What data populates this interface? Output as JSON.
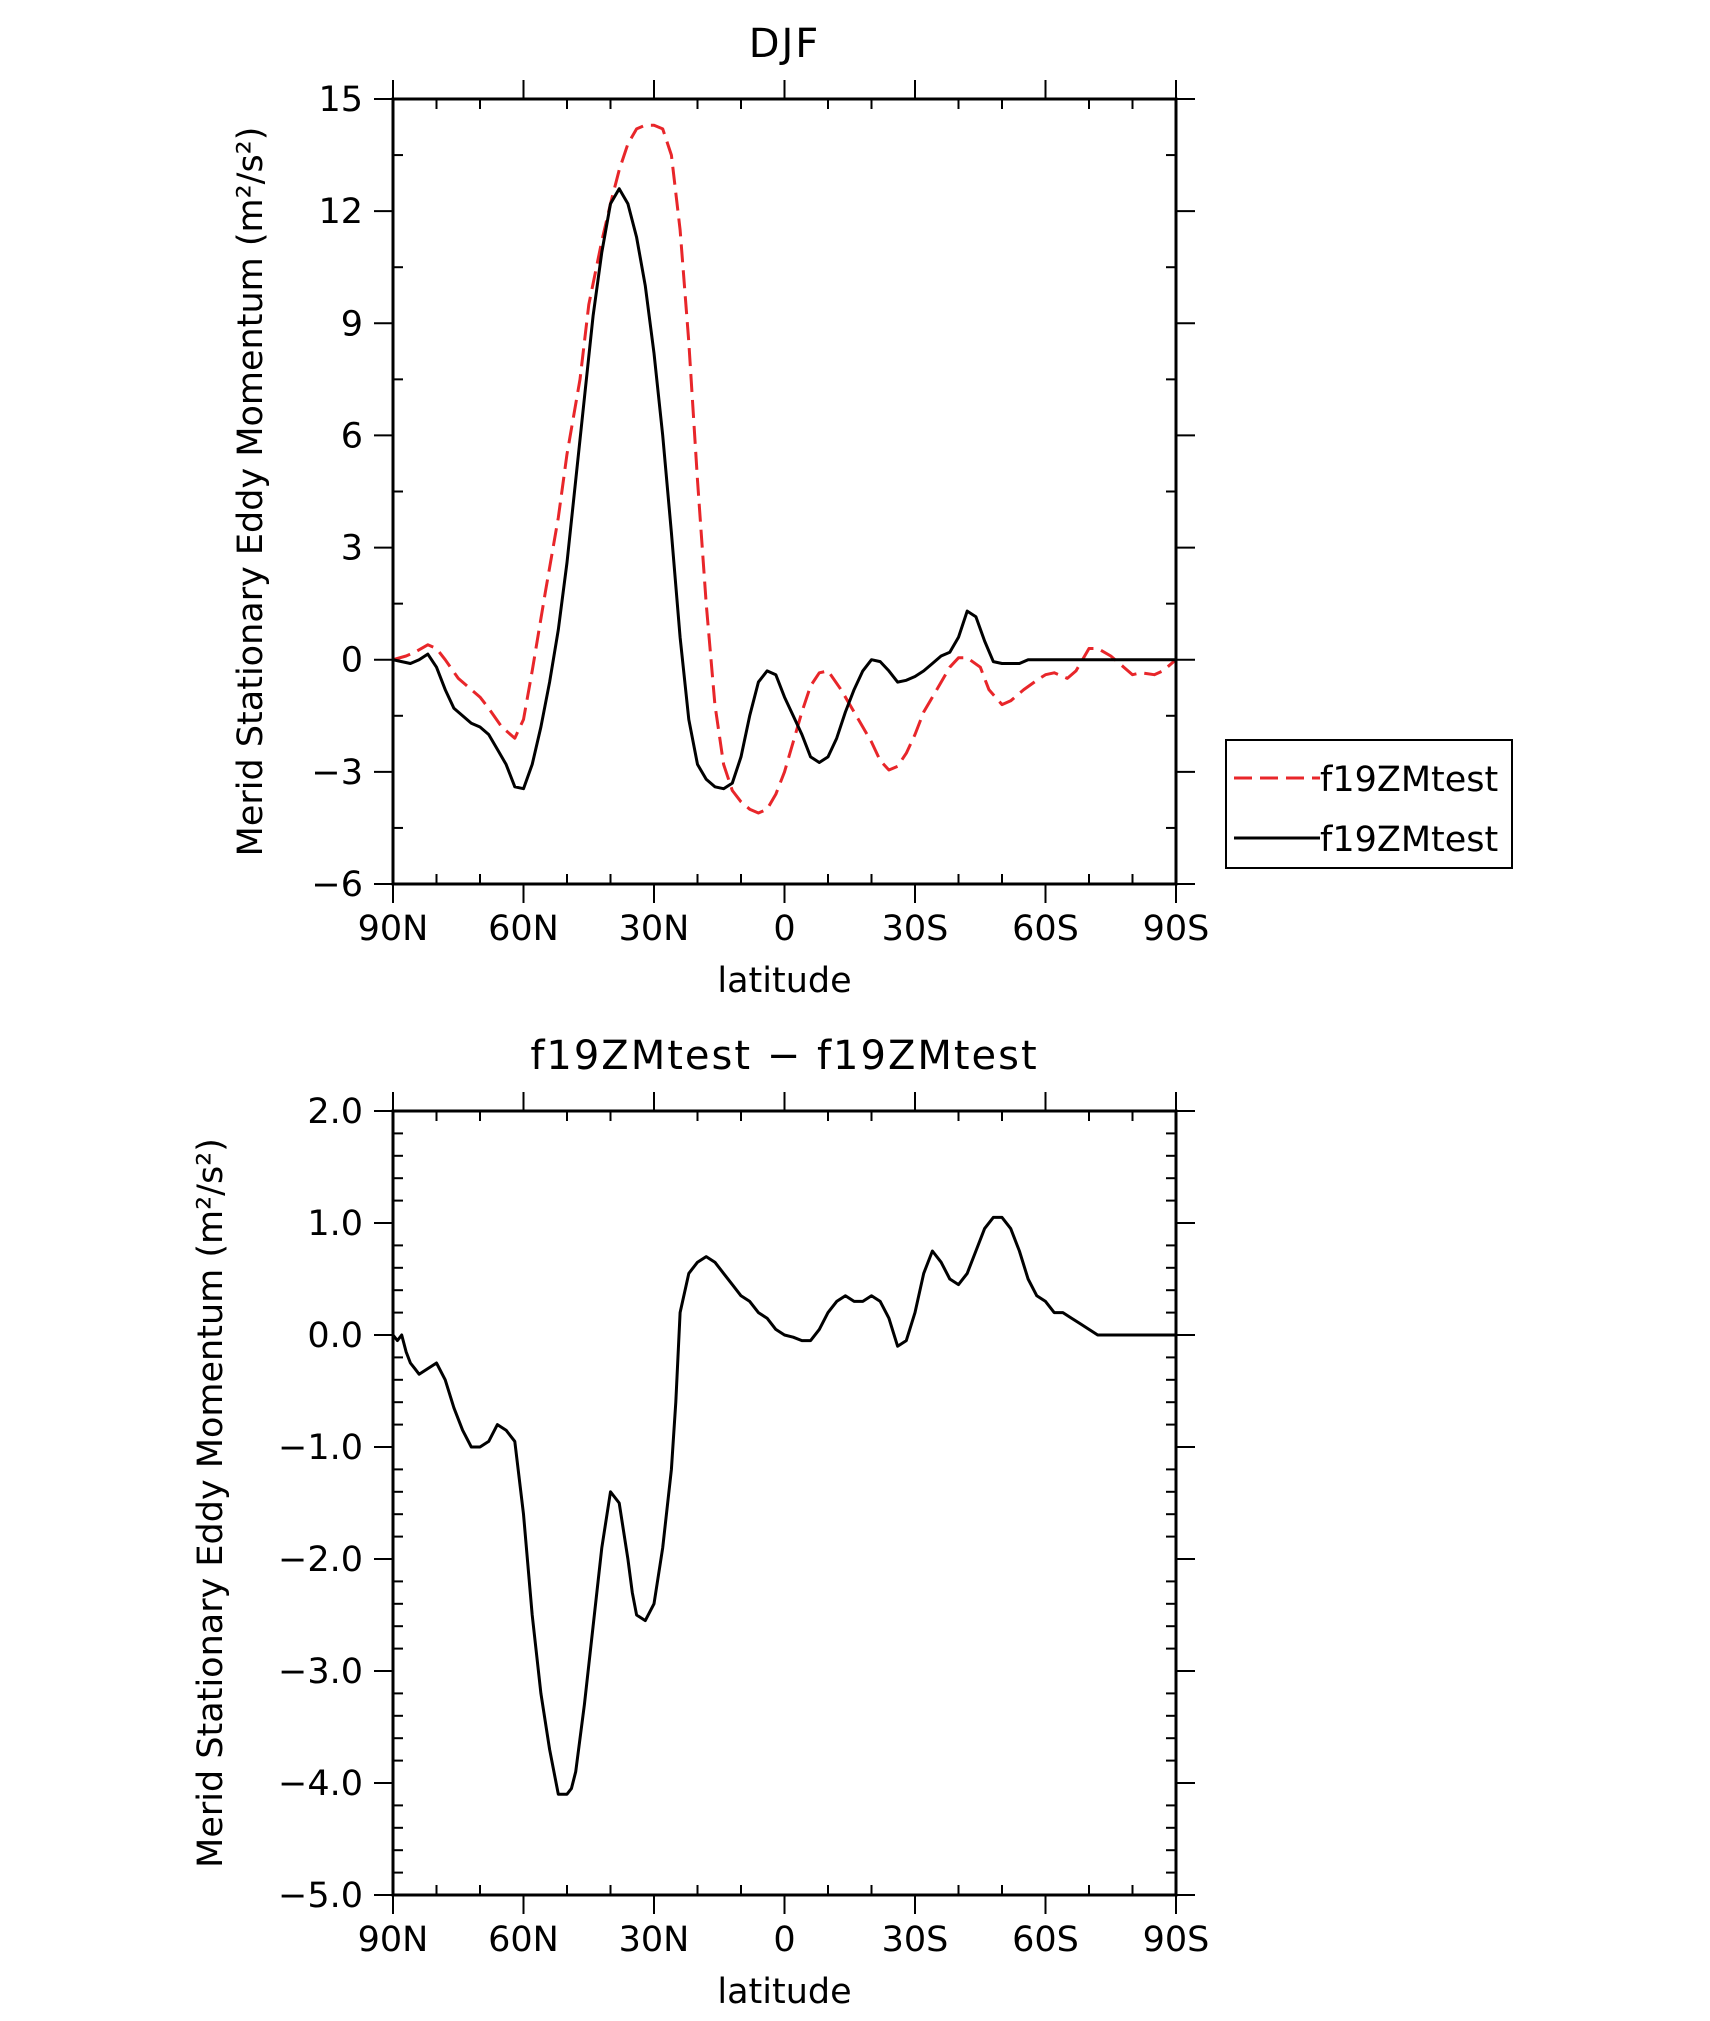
{
  "chart_data": [
    {
      "type": "line",
      "title": "DJF",
      "xlabel": "latitude",
      "ylabel": "Merid Stationary Eddy Momentum (m²/s²)",
      "xlim": [
        90,
        -90
      ],
      "ylim": [
        -6,
        15
      ],
      "x_ticks": [
        90,
        60,
        30,
        0,
        -30,
        -60,
        -90
      ],
      "x_tick_labels": [
        "90N",
        "60N",
        "30N",
        "0",
        "30S",
        "60S",
        "90S"
      ],
      "y_ticks": [
        -6,
        -3,
        0,
        3,
        6,
        9,
        12,
        15
      ],
      "y_tick_labels": [
        "−6",
        "−3",
        "0",
        "3",
        "6",
        "9",
        "12",
        "15"
      ],
      "legend_position": "right",
      "series": [
        {
          "name": "f19ZMtest",
          "color": "#e8262a",
          "dash": "dashed",
          "x": [
            90,
            87,
            85,
            82,
            80,
            78,
            75,
            72,
            70,
            68,
            65,
            62,
            60,
            58,
            55,
            52,
            50,
            47,
            45,
            42,
            40,
            38,
            36,
            34,
            32,
            30,
            28,
            26,
            24,
            22,
            20,
            18,
            16,
            14,
            12,
            10,
            8,
            6,
            4,
            2,
            0,
            -2,
            -4,
            -6,
            -8,
            -10,
            -13,
            -16,
            -18,
            -20,
            -22,
            -24,
            -26,
            -28,
            -30,
            -32,
            -35,
            -38,
            -40,
            -42,
            -45,
            -47,
            -50,
            -52,
            -55,
            -58,
            -60,
            -62,
            -65,
            -67,
            -70,
            -72,
            -75,
            -78,
            -80,
            -82,
            -85,
            -87,
            -90
          ],
          "y": [
            0,
            0.1,
            0.2,
            0.4,
            0.3,
            0,
            -0.5,
            -0.8,
            -1.0,
            -1.3,
            -1.8,
            -2.1,
            -1.6,
            -0.3,
            1.8,
            3.8,
            5.5,
            7.5,
            9.5,
            11.2,
            12.2,
            13.1,
            13.8,
            14.2,
            14.3,
            14.3,
            14.2,
            13.5,
            11.5,
            8.5,
            4.8,
            1.5,
            -1.2,
            -2.8,
            -3.5,
            -3.8,
            -4.0,
            -4.1,
            -4.0,
            -3.6,
            -3.0,
            -2.2,
            -1.4,
            -0.7,
            -0.35,
            -0.3,
            -0.8,
            -1.4,
            -1.8,
            -2.2,
            -2.7,
            -2.95,
            -2.85,
            -2.5,
            -2.0,
            -1.4,
            -0.8,
            -0.2,
            0.05,
            0.05,
            -0.2,
            -0.8,
            -1.2,
            -1.1,
            -0.8,
            -0.55,
            -0.4,
            -0.35,
            -0.5,
            -0.3,
            0.3,
            0.3,
            0.1,
            -0.2,
            -0.4,
            -0.35,
            -0.4,
            -0.3,
            0
          ]
        },
        {
          "name": "f19ZMtest",
          "color": "#000000",
          "dash": "solid",
          "x": [
            90,
            88,
            86,
            84,
            82,
            80,
            78,
            76,
            74,
            72,
            70,
            68,
            66,
            64,
            62,
            60,
            58,
            56,
            54,
            52,
            50,
            48,
            46,
            44,
            42,
            40,
            38,
            36,
            34,
            32,
            30,
            28,
            26,
            24,
            22,
            20,
            18,
            16,
            14,
            12,
            10,
            8,
            6,
            4,
            2,
            0,
            -2,
            -4,
            -6,
            -8,
            -10,
            -12,
            -14,
            -16,
            -18,
            -20,
            -22,
            -24,
            -26,
            -28,
            -30,
            -32,
            -34,
            -36,
            -38,
            -40,
            -42,
            -44,
            -46,
            -48,
            -50,
            -52,
            -54,
            -56,
            -58,
            -60,
            -62,
            -64,
            -66,
            -68,
            -70,
            -72,
            -74,
            -76,
            -78,
            -80,
            -82,
            -84,
            -86,
            -88,
            -90
          ],
          "y": [
            0,
            -0.05,
            -0.1,
            0,
            0.15,
            -0.2,
            -0.8,
            -1.3,
            -1.5,
            -1.7,
            -1.8,
            -2.0,
            -2.4,
            -2.8,
            -3.4,
            -3.45,
            -2.8,
            -1.8,
            -0.6,
            0.8,
            2.6,
            4.8,
            7.0,
            9.2,
            10.9,
            12.2,
            12.6,
            12.2,
            11.3,
            10.0,
            8.2,
            6.0,
            3.4,
            0.6,
            -1.6,
            -2.8,
            -3.2,
            -3.4,
            -3.45,
            -3.3,
            -2.6,
            -1.5,
            -0.6,
            -0.3,
            -0.4,
            -1.0,
            -1.5,
            -2.0,
            -2.6,
            -2.75,
            -2.6,
            -2.1,
            -1.4,
            -0.8,
            -0.3,
            0,
            -0.05,
            -0.3,
            -0.6,
            -0.55,
            -0.45,
            -0.3,
            -0.1,
            0.1,
            0.2,
            0.6,
            1.3,
            1.15,
            0.5,
            -0.05,
            -0.1,
            -0.1,
            -0.1,
            0,
            0,
            0,
            0,
            0,
            0,
            0,
            0,
            0,
            0,
            0,
            0,
            0,
            0,
            0,
            0,
            0,
            0
          ]
        }
      ]
    },
    {
      "type": "line",
      "title": "f19ZMtest − f19ZMtest",
      "xlabel": "latitude",
      "ylabel": "Merid Stationary Eddy Momentum (m²/s²)",
      "xlim": [
        90,
        -90
      ],
      "ylim": [
        -5,
        2
      ],
      "x_ticks": [
        90,
        60,
        30,
        0,
        -30,
        -60,
        -90
      ],
      "x_tick_labels": [
        "90N",
        "60N",
        "30N",
        "0",
        "30S",
        "60S",
        "90S"
      ],
      "y_ticks": [
        -5,
        -4,
        -3,
        -2,
        -1,
        0,
        1,
        2
      ],
      "y_tick_labels": [
        "−5.0",
        "−4.0",
        "−3.0",
        "−2.0",
        "−1.0",
        "0.0",
        "1.0",
        "2.0"
      ],
      "series": [
        {
          "color": "#000000",
          "dash": "solid",
          "x": [
            90,
            89,
            88,
            87,
            86,
            85,
            84,
            82,
            80,
            78,
            76,
            74,
            72,
            70,
            68,
            66,
            64,
            62,
            60,
            58,
            56,
            54,
            52,
            50,
            49,
            48,
            46,
            44,
            42,
            40,
            38,
            36,
            35,
            34,
            32,
            30,
            28,
            26,
            25,
            24,
            22,
            20,
            18,
            16,
            14,
            12,
            10,
            8,
            6,
            4,
            2,
            0,
            -2,
            -4,
            -6,
            -8,
            -10,
            -12,
            -14,
            -16,
            -18,
            -20,
            -22,
            -24,
            -26,
            -28,
            -30,
            -32,
            -34,
            -36,
            -38,
            -40,
            -42,
            -44,
            -46,
            -48,
            -50,
            -52,
            -54,
            -56,
            -58,
            -60,
            -62,
            -64,
            -66,
            -68,
            -70,
            -72,
            -74,
            -76,
            -78,
            -80,
            -82,
            -84,
            -86,
            -88,
            -90
          ],
          "y": [
            0,
            -0.05,
            0,
            -0.15,
            -0.25,
            -0.3,
            -0.35,
            -0.3,
            -0.25,
            -0.4,
            -0.65,
            -0.85,
            -1.0,
            -1.0,
            -0.95,
            -0.8,
            -0.85,
            -0.95,
            -1.6,
            -2.5,
            -3.2,
            -3.7,
            -4.1,
            -4.1,
            -4.05,
            -3.9,
            -3.3,
            -2.6,
            -1.9,
            -1.4,
            -1.5,
            -2.0,
            -2.3,
            -2.5,
            -2.55,
            -2.4,
            -1.9,
            -1.2,
            -0.6,
            0.2,
            0.55,
            0.65,
            0.7,
            0.65,
            0.55,
            0.45,
            0.35,
            0.3,
            0.2,
            0.15,
            0.05,
            0,
            -0.02,
            -0.05,
            -0.05,
            0.05,
            0.2,
            0.3,
            0.35,
            0.3,
            0.3,
            0.35,
            0.3,
            0.15,
            -0.1,
            -0.05,
            0.2,
            0.55,
            0.75,
            0.65,
            0.5,
            0.45,
            0.55,
            0.75,
            0.95,
            1.05,
            1.05,
            0.95,
            0.75,
            0.5,
            0.35,
            0.3,
            0.2,
            0.2,
            0.15,
            0.1,
            0.05,
            0,
            0,
            0,
            0,
            0,
            0,
            0,
            0,
            0,
            0
          ]
        }
      ]
    }
  ]
}
